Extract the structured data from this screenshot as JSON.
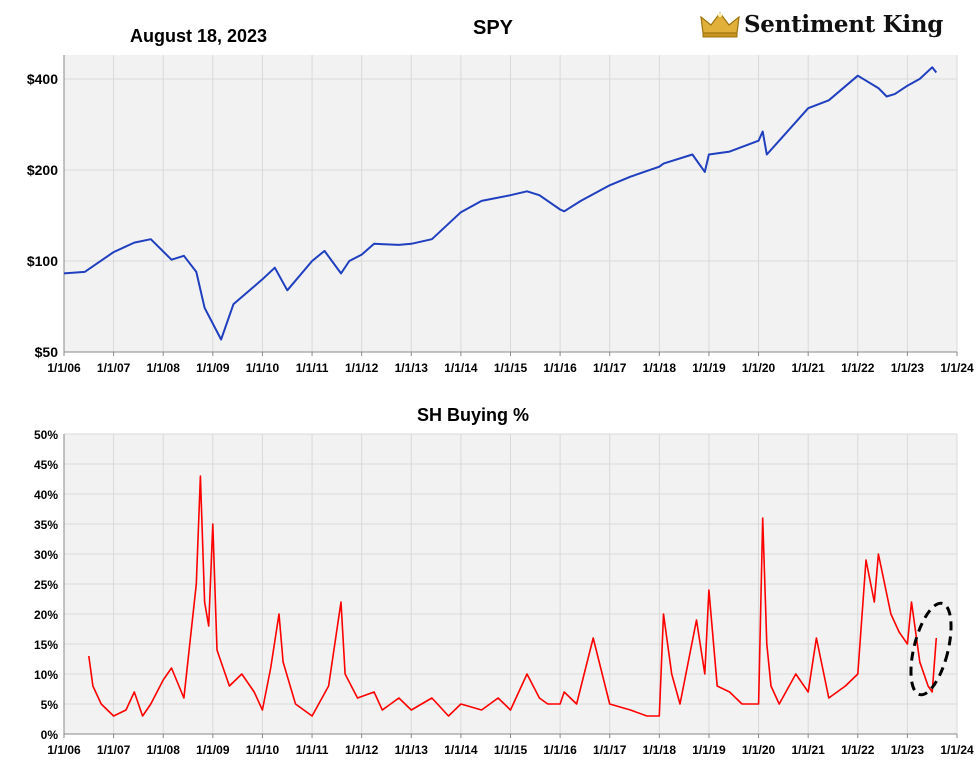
{
  "header": {
    "date": "August 18, 2023",
    "brand": "Sentiment King",
    "brand_icon": "crown-icon",
    "brand_color": "#d4a017"
  },
  "chart_data": [
    {
      "type": "line",
      "title": "SPY",
      "xlabel": "",
      "ylabel": "",
      "scale": "log",
      "ylim": [
        50,
        480
      ],
      "y_ticks": [
        "$50",
        "$100",
        "$200",
        "$400"
      ],
      "y_tick_values": [
        50,
        100,
        200,
        400
      ],
      "x_ticks": [
        "1/1/06",
        "1/1/07",
        "1/1/08",
        "1/1/09",
        "1/1/10",
        "1/1/11",
        "1/1/12",
        "1/1/13",
        "1/1/14",
        "1/1/15",
        "1/1/16",
        "1/1/17",
        "1/1/18",
        "1/1/19",
        "1/1/20",
        "1/1/21",
        "1/1/22",
        "1/1/23",
        "1/1/24"
      ],
      "grid": true,
      "color": "#1f3fbf",
      "series": [
        {
          "x": [
            "2006-01",
            "2006-06",
            "2007-01",
            "2007-06",
            "2007-10",
            "2008-03",
            "2008-06",
            "2008-09",
            "2008-11",
            "2009-03",
            "2009-06",
            "2010-01",
            "2010-04",
            "2010-07",
            "2011-01",
            "2011-04",
            "2011-08",
            "2011-10",
            "2012-01",
            "2012-04",
            "2012-10",
            "2013-01",
            "2013-06",
            "2014-01",
            "2014-06",
            "2015-01",
            "2015-05",
            "2015-08",
            "2016-01",
            "2016-02",
            "2016-06",
            "2017-01",
            "2017-06",
            "2018-01",
            "2018-02",
            "2018-09",
            "2018-12",
            "2019-01",
            "2019-06",
            "2020-01",
            "2020-02",
            "2020-03",
            "2020-06",
            "2021-01",
            "2021-06",
            "2022-01",
            "2022-06",
            "2022-08",
            "2022-10",
            "2023-01",
            "2023-04",
            "2023-07",
            "2023-08"
          ],
          "values": [
            91,
            92,
            107,
            115,
            118,
            101,
            104,
            92,
            70,
            55,
            72,
            87,
            95,
            80,
            100,
            108,
            91,
            100,
            105,
            114,
            113,
            114,
            118,
            145,
            158,
            165,
            170,
            165,
            148,
            146,
            158,
            178,
            190,
            205,
            210,
            225,
            197,
            225,
            230,
            250,
            268,
            225,
            250,
            320,
            340,
            410,
            373,
            350,
            357,
            380,
            400,
            437,
            420
          ]
        }
      ]
    },
    {
      "type": "line",
      "title": "SH Buying %",
      "xlabel": "",
      "ylabel": "",
      "ylim": [
        0,
        50
      ],
      "y_ticks": [
        "0%",
        "5%",
        "10%",
        "15%",
        "20%",
        "25%",
        "30%",
        "35%",
        "40%",
        "45%",
        "50%"
      ],
      "y_tick_values": [
        0,
        5,
        10,
        15,
        20,
        25,
        30,
        35,
        40,
        45,
        50
      ],
      "x_ticks": [
        "1/1/06",
        "1/1/07",
        "1/1/08",
        "1/1/09",
        "1/1/10",
        "1/1/11",
        "1/1/12",
        "1/1/13",
        "1/1/14",
        "1/1/15",
        "1/1/16",
        "1/1/17",
        "1/1/18",
        "1/1/19",
        "1/1/20",
        "1/1/21",
        "1/1/22",
        "1/1/23",
        "1/1/24"
      ],
      "grid": true,
      "color": "#ff0000",
      "annotation": "dashed ellipse highlighting the recent rise in mid-2023",
      "series": [
        {
          "x": [
            "2006-07",
            "2006-08",
            "2006-10",
            "2007-01",
            "2007-04",
            "2007-06",
            "2007-08",
            "2007-10",
            "2008-01",
            "2008-03",
            "2008-06",
            "2008-09",
            "2008-10",
            "2008-11",
            "2008-12",
            "2009-01",
            "2009-02",
            "2009-03",
            "2009-05",
            "2009-08",
            "2009-11",
            "2010-01",
            "2010-03",
            "2010-05",
            "2010-06",
            "2010-09",
            "2011-01",
            "2011-05",
            "2011-08",
            "2011-09",
            "2011-12",
            "2012-04",
            "2012-06",
            "2012-10",
            "2013-01",
            "2013-06",
            "2013-10",
            "2014-01",
            "2014-06",
            "2014-10",
            "2015-01",
            "2015-05",
            "2015-08",
            "2015-10",
            "2016-01",
            "2016-02",
            "2016-05",
            "2016-09",
            "2017-01",
            "2017-06",
            "2017-10",
            "2018-01",
            "2018-02",
            "2018-04",
            "2018-06",
            "2018-10",
            "2018-12",
            "2019-01",
            "2019-03",
            "2019-06",
            "2019-09",
            "2020-01",
            "2020-02",
            "2020-03",
            "2020-04",
            "2020-06",
            "2020-10",
            "2021-01",
            "2021-03",
            "2021-06",
            "2021-10",
            "2022-01",
            "2022-03",
            "2022-05",
            "2022-06",
            "2022-09",
            "2022-11",
            "2023-01",
            "2023-02",
            "2023-04",
            "2023-06",
            "2023-07",
            "2023-08"
          ],
          "values": [
            13,
            8,
            5,
            3,
            4,
            7,
            3,
            5,
            9,
            11,
            6,
            25,
            43,
            22,
            18,
            35,
            14,
            12,
            8,
            10,
            7,
            4,
            11,
            20,
            12,
            5,
            3,
            8,
            22,
            10,
            6,
            7,
            4,
            6,
            4,
            6,
            3,
            5,
            4,
            6,
            4,
            10,
            6,
            5,
            5,
            7,
            5,
            16,
            5,
            4,
            3,
            3,
            20,
            10,
            5,
            19,
            10,
            24,
            8,
            7,
            5,
            5,
            36,
            15,
            8,
            5,
            10,
            7,
            16,
            6,
            8,
            10,
            29,
            22,
            30,
            20,
            17,
            15,
            22,
            12,
            8,
            7,
            16
          ]
        }
      ]
    }
  ]
}
